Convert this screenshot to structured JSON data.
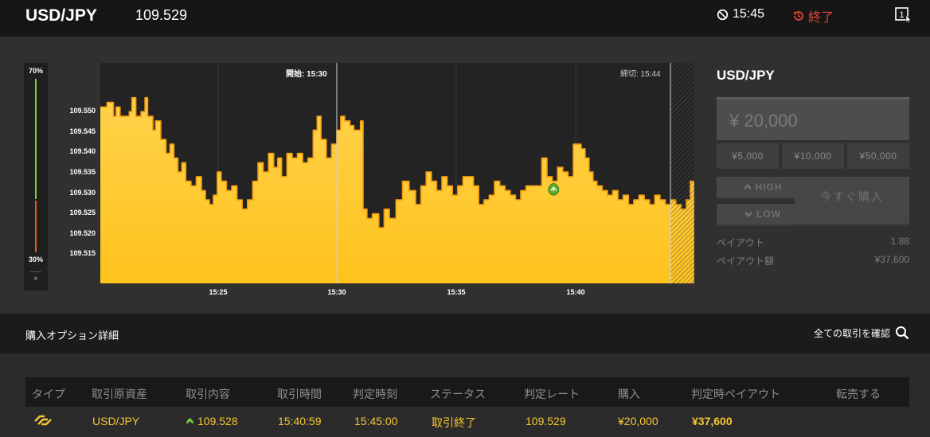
{
  "header": {
    "pair": "USD/JPY",
    "rate": "109.529",
    "timer": "15:45",
    "end_label": "終了",
    "window_label": "1"
  },
  "ratio": {
    "up": "70%",
    "down": "30%",
    "close": "×",
    "up_fraction": 0.7
  },
  "chart_data": {
    "type": "area",
    "ylabels": [
      "109.550",
      "109.545",
      "109.540",
      "109.535",
      "109.530",
      "109.525",
      "109.520",
      "109.515"
    ],
    "xlabels": [
      "15:25",
      "15:30",
      "15:35",
      "15:40"
    ],
    "start_label": "開始: 15:30",
    "close_label": "締切: 15:44",
    "ylim": [
      109.509,
      109.5565
    ],
    "series": [
      [
        0,
        109.547
      ],
      [
        0.5,
        109.548
      ],
      [
        1,
        109.545
      ],
      [
        1.2,
        109.547
      ],
      [
        1.5,
        109.545
      ],
      [
        2.2,
        109.546
      ],
      [
        2.4,
        109.549
      ],
      [
        2.7,
        109.545
      ],
      [
        3.1,
        109.546
      ],
      [
        3.4,
        109.549
      ],
      [
        3.6,
        109.545
      ],
      [
        4.0,
        109.542
      ],
      [
        4.2,
        109.544
      ],
      [
        4.6,
        109.54
      ],
      [
        5.0,
        109.537
      ],
      [
        5.3,
        109.539
      ],
      [
        5.6,
        109.536
      ],
      [
        5.9,
        109.533
      ],
      [
        6.2,
        109.535
      ],
      [
        6.5,
        109.531
      ],
      [
        6.9,
        109.53
      ],
      [
        7.3,
        109.532
      ],
      [
        7.7,
        109.529
      ],
      [
        8.0,
        109.527
      ],
      [
        8.3,
        109.526
      ],
      [
        8.6,
        109.528
      ],
      [
        8.9,
        109.533
      ],
      [
        9.2,
        109.531
      ],
      [
        9.6,
        109.529
      ],
      [
        10.0,
        109.53
      ],
      [
        10.4,
        109.527
      ],
      [
        10.8,
        109.525
      ],
      [
        11.2,
        109.527
      ],
      [
        11.6,
        109.531
      ],
      [
        12.0,
        109.535
      ],
      [
        12.4,
        109.533
      ],
      [
        12.8,
        109.537
      ],
      [
        13.2,
        109.534
      ],
      [
        13.5,
        109.536
      ],
      [
        13.8,
        109.532
      ],
      [
        14.2,
        109.537
      ],
      [
        14.6,
        109.536
      ],
      [
        15.0,
        109.537
      ],
      [
        15.4,
        109.535
      ],
      [
        15.8,
        109.536
      ],
      [
        16.2,
        109.542
      ],
      [
        16.5,
        109.545
      ],
      [
        16.8,
        109.54
      ],
      [
        17.2,
        109.536
      ],
      [
        17.6,
        109.539
      ],
      [
        18.0,
        109.542
      ],
      [
        18.3,
        109.545
      ],
      [
        18.6,
        109.544
      ],
      [
        19.0,
        109.543
      ],
      [
        19.3,
        109.542
      ],
      [
        19.6,
        109.542
      ],
      [
        19.8,
        109.544
      ],
      [
        20.0,
        109.525
      ],
      [
        20.3,
        109.523
      ],
      [
        20.7,
        109.524
      ],
      [
        21.2,
        109.521
      ],
      [
        21.6,
        109.525
      ],
      [
        22.0,
        109.523
      ],
      [
        22.5,
        109.527
      ],
      [
        23.0,
        109.531
      ],
      [
        23.5,
        109.529
      ],
      [
        24.0,
        109.526
      ],
      [
        24.4,
        109.53
      ],
      [
        24.8,
        109.533
      ],
      [
        25.2,
        109.531
      ],
      [
        25.6,
        109.529
      ],
      [
        26.0,
        109.532
      ],
      [
        26.4,
        109.53
      ],
      [
        26.8,
        109.528
      ],
      [
        27.2,
        109.53
      ],
      [
        27.6,
        109.532
      ],
      [
        28.0,
        109.532
      ],
      [
        28.4,
        109.53
      ],
      [
        28.8,
        109.526
      ],
      [
        29.2,
        109.527
      ],
      [
        29.6,
        109.528
      ],
      [
        30.0,
        109.531
      ],
      [
        30.4,
        109.53
      ],
      [
        30.8,
        109.529
      ],
      [
        31.2,
        109.528
      ],
      [
        31.6,
        109.527
      ],
      [
        32.0,
        109.529
      ],
      [
        32.4,
        109.53
      ],
      [
        32.8,
        109.53
      ],
      [
        33.2,
        109.53
      ],
      [
        33.6,
        109.536
      ],
      [
        34.0,
        109.532
      ],
      [
        34.4,
        109.531
      ],
      [
        34.8,
        109.534
      ],
      [
        35.2,
        109.533
      ],
      [
        35.6,
        109.532
      ],
      [
        36.0,
        109.539
      ],
      [
        36.3,
        109.539
      ],
      [
        36.6,
        109.538
      ],
      [
        36.9,
        109.536
      ],
      [
        37.2,
        109.533
      ],
      [
        37.5,
        109.531
      ],
      [
        37.8,
        109.53
      ],
      [
        38.2,
        109.529
      ],
      [
        38.6,
        109.528
      ],
      [
        39.0,
        109.529
      ],
      [
        39.4,
        109.527
      ],
      [
        39.8,
        109.528
      ],
      [
        40.2,
        109.526
      ],
      [
        40.6,
        109.527
      ],
      [
        41.0,
        109.528
      ],
      [
        41.4,
        109.527
      ],
      [
        41.8,
        109.526
      ],
      [
        42.2,
        109.528
      ],
      [
        42.6,
        109.527
      ],
      [
        43.0,
        109.526
      ],
      [
        43.4,
        109.527
      ],
      [
        43.8,
        109.526
      ],
      [
        44.2,
        109.525
      ],
      [
        44.6,
        109.527
      ],
      [
        44.9,
        109.531
      ],
      [
        45.2,
        109.529
      ]
    ],
    "purchase_marker": {
      "x": 34.5,
      "y": 109.528
    }
  },
  "side": {
    "title": "USD/JPY",
    "amount": "¥ 20,000",
    "chips": [
      "¥5,000",
      "¥10,000",
      "¥50,000"
    ],
    "high": "HIGH",
    "low": "LOW",
    "buy_now": "今すぐ購入",
    "payout_label": "ペイアウト",
    "payout_value": "1.88",
    "payout_amount_label": "ペイアウト額",
    "payout_amount_value": "¥37,600"
  },
  "details": {
    "title": "購入オプション詳細",
    "confirm_all": "全ての取引を確認"
  },
  "table": {
    "headers": [
      "タイプ",
      "取引原資産",
      "取引内容",
      "取引時間",
      "判定時刻",
      "ステータス",
      "判定レート",
      "購入",
      "判定時ペイアウト",
      "転売する"
    ],
    "row": {
      "asset": "USD/JPY",
      "content": "109.528",
      "trade_time": "15:40:59",
      "judge_time": "15:45:00",
      "status": "取引終了",
      "judge_rate": "109.529",
      "purchase": "¥20,000",
      "payout": "¥37,600"
    }
  }
}
